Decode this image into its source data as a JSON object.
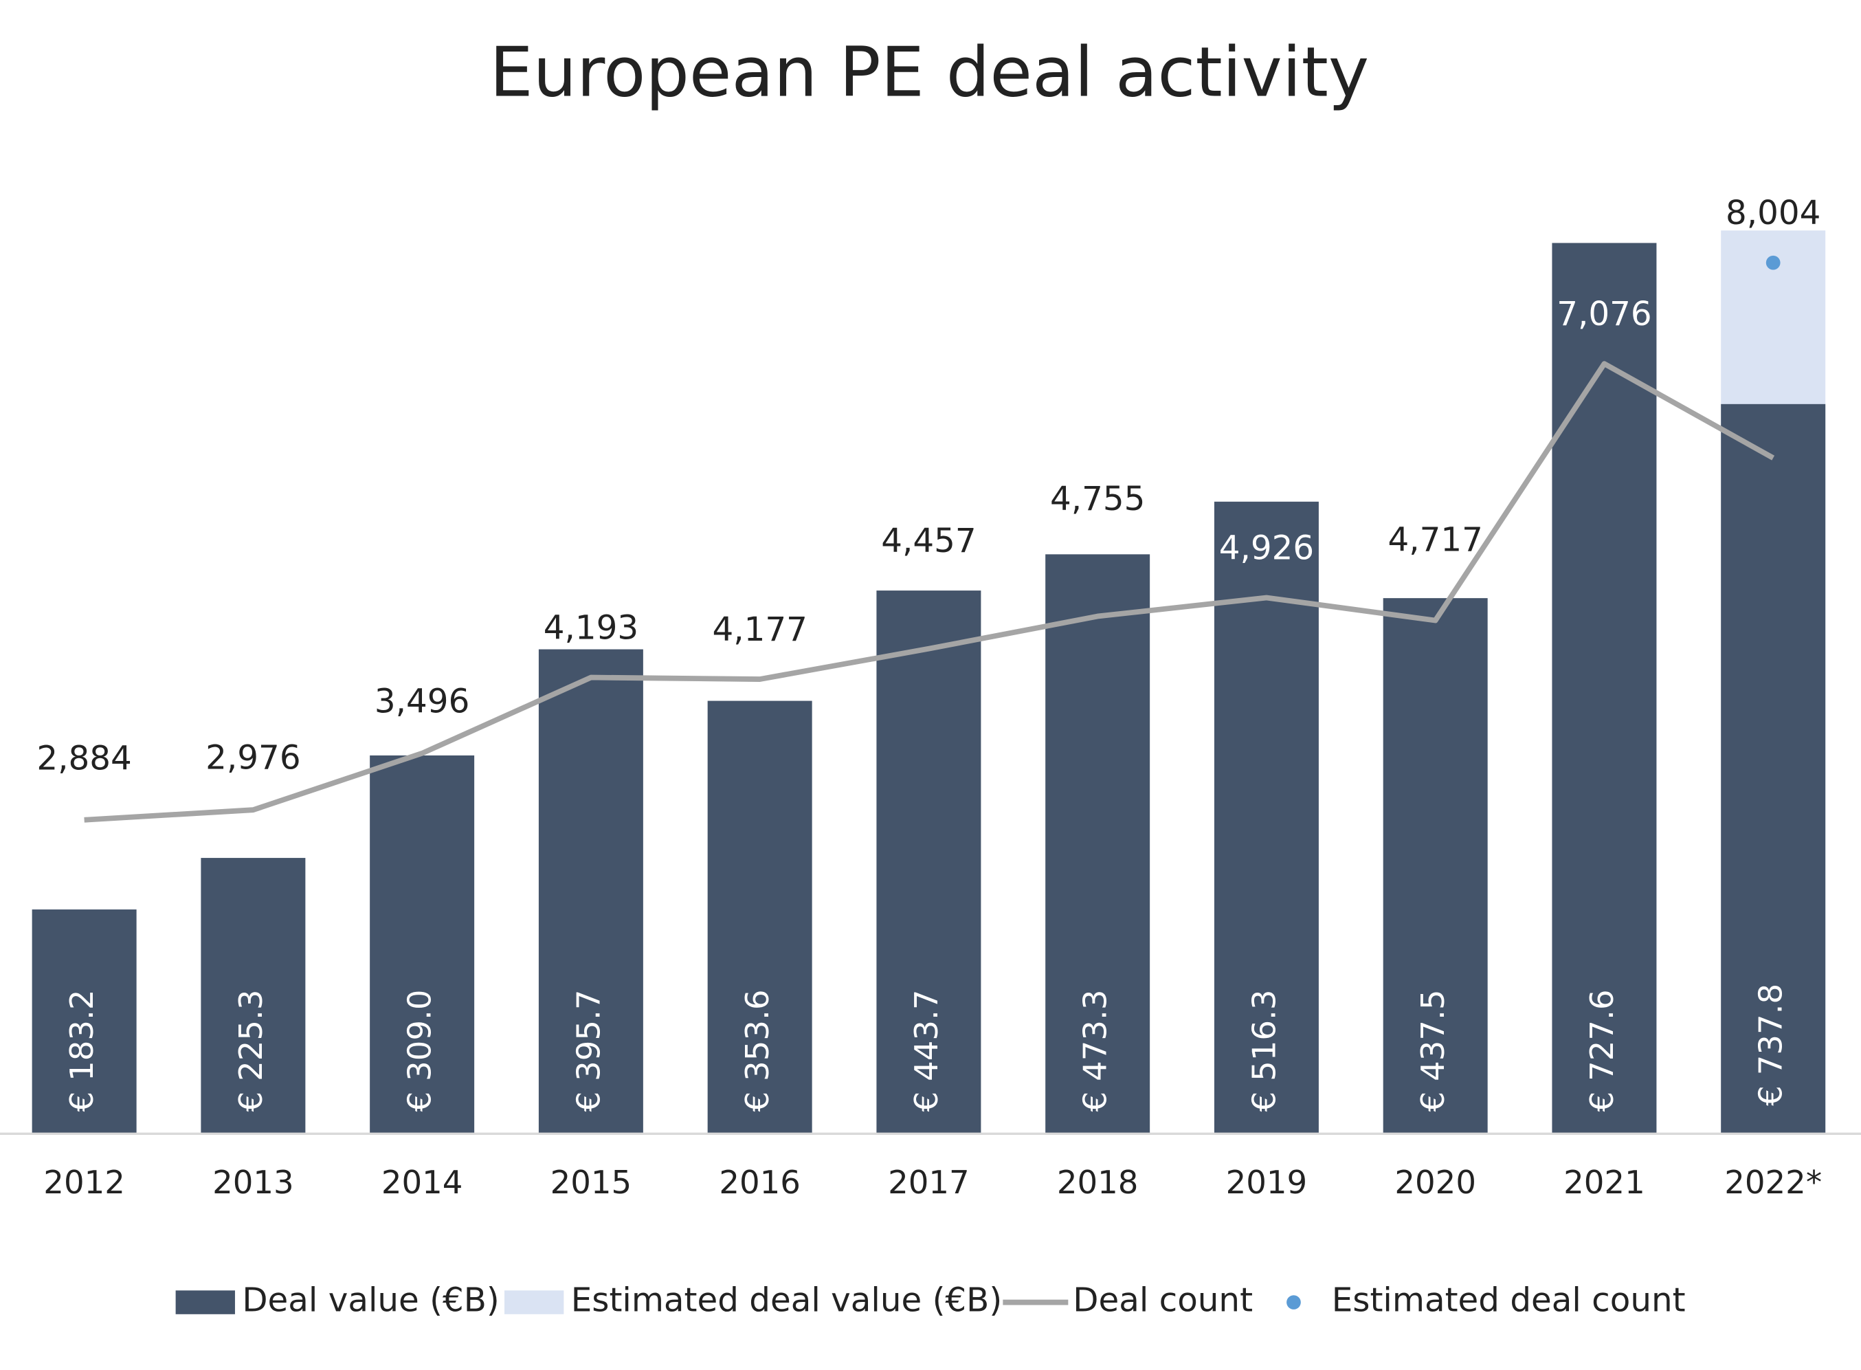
{
  "chart_data": {
    "type": "bar",
    "title": "European PE deal activity",
    "categories": [
      "2012",
      "2013",
      "2014",
      "2015",
      "2016",
      "2017",
      "2018",
      "2019",
      "2020",
      "2021",
      "2022*"
    ],
    "ylim": [
      0,
      800
    ],
    "y2lim": [
      0,
      9000
    ],
    "series": [
      {
        "name": "Deal value (€B)",
        "type": "bar",
        "color": "#44546a",
        "values": [
          183.2,
          225.3,
          309.0,
          395.7,
          353.6,
          443.7,
          473.3,
          516.3,
          437.5,
          727.6,
          596.0
        ],
        "value_labels": [
          "€ 183.2",
          "€ 225.3",
          "€ 309.0",
          "€ 395.7",
          "€ 353.6",
          "€ 443.7",
          "€ 473.3",
          "€ 516.3",
          "€ 437.5",
          "€ 727.6",
          null
        ]
      },
      {
        "name": "Estimated deal value (€B)",
        "type": "bar",
        "color": "#dae3f3",
        "values": [
          null,
          null,
          null,
          null,
          null,
          null,
          null,
          null,
          null,
          null,
          737.8
        ],
        "value_labels": [
          null,
          null,
          null,
          null,
          null,
          null,
          null,
          null,
          null,
          null,
          "€ 737.8"
        ]
      },
      {
        "name": "Deal count",
        "type": "line",
        "axis": "y2",
        "color": "#a5a5a5",
        "values": [
          2884,
          2976,
          3496,
          4193,
          4177,
          4457,
          4755,
          4926,
          4717,
          7076,
          6210
        ],
        "value_labels": [
          "2,884",
          "2,976",
          "3,496",
          "4,193",
          "4,177",
          "4,457",
          "4,755",
          "4,926",
          "4,717",
          "7,076",
          null
        ]
      },
      {
        "name": "Estimated deal count",
        "type": "scatter",
        "axis": "y2",
        "color": "#5b9bd5",
        "values": [
          null,
          null,
          null,
          null,
          null,
          null,
          null,
          null,
          null,
          null,
          8004
        ],
        "value_labels": [
          null,
          null,
          null,
          null,
          null,
          null,
          null,
          null,
          null,
          null,
          "8,004"
        ]
      }
    ]
  }
}
